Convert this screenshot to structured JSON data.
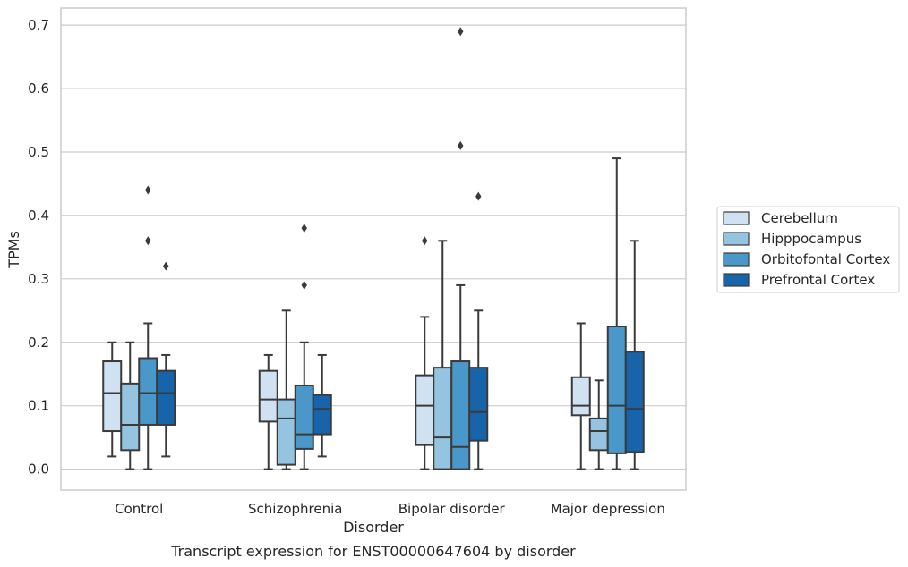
{
  "chart_data": {
    "type": "box",
    "caption": "Transcript expression for ENST00000647604 by disorder",
    "xlabel": "Disorder",
    "ylabel": "TPMs",
    "ylim": [
      -0.033,
      0.727
    ],
    "yticks": [
      0.0,
      0.1,
      0.2,
      0.3,
      0.4,
      0.5,
      0.6,
      0.7
    ],
    "ytick_labels": [
      "0.0",
      "0.1",
      "0.2",
      "0.3",
      "0.4",
      "0.5",
      "0.6",
      "0.7"
    ],
    "grid": true,
    "legend_placement": "center-right outside",
    "categories": [
      "Control",
      "Schizophrenia",
      "Bipolar disorder",
      "Major depression"
    ],
    "series": [
      {
        "name": "Cerebellum",
        "color": "#d0e1f2",
        "boxes": [
          {
            "whislo": 0.02,
            "q1": 0.06,
            "med": 0.12,
            "q3": 0.17,
            "whishi": 0.2,
            "fliers": []
          },
          {
            "whislo": 0.0,
            "q1": 0.075,
            "med": 0.11,
            "q3": 0.155,
            "whishi": 0.18,
            "fliers": []
          },
          {
            "whislo": 0.0,
            "q1": 0.038,
            "med": 0.1,
            "q3": 0.148,
            "whishi": 0.24,
            "fliers": [
              0.36
            ]
          },
          {
            "whislo": 0.0,
            "q1": 0.085,
            "med": 0.1,
            "q3": 0.145,
            "whishi": 0.23,
            "fliers": []
          }
        ]
      },
      {
        "name": "Hipppocampus",
        "color": "#94c4df",
        "boxes": [
          {
            "whislo": 0.0,
            "q1": 0.03,
            "med": 0.07,
            "q3": 0.135,
            "whishi": 0.2,
            "fliers": []
          },
          {
            "whislo": 0.0,
            "q1": 0.007,
            "med": 0.08,
            "q3": 0.11,
            "whishi": 0.25,
            "fliers": []
          },
          {
            "whislo": 0.0,
            "q1": 0.0,
            "med": 0.05,
            "q3": 0.16,
            "whishi": 0.36,
            "fliers": []
          },
          {
            "whislo": 0.0,
            "q1": 0.03,
            "med": 0.06,
            "q3": 0.08,
            "whishi": 0.14,
            "fliers": []
          }
        ]
      },
      {
        "name": "Orbitofontal Cortex",
        "color": "#4a98c9",
        "boxes": [
          {
            "whislo": 0.0,
            "q1": 0.07,
            "med": 0.12,
            "q3": 0.175,
            "whishi": 0.23,
            "fliers": [
              0.44,
              0.36
            ]
          },
          {
            "whislo": 0.0,
            "q1": 0.032,
            "med": 0.055,
            "q3": 0.132,
            "whishi": 0.2,
            "fliers": [
              0.38,
              0.29
            ]
          },
          {
            "whislo": 0.0,
            "q1": 0.0,
            "med": 0.035,
            "q3": 0.17,
            "whishi": 0.29,
            "fliers": [
              0.69,
              0.51
            ]
          },
          {
            "whislo": 0.0,
            "q1": 0.025,
            "med": 0.1,
            "q3": 0.225,
            "whishi": 0.49,
            "fliers": []
          }
        ]
      },
      {
        "name": "Prefrontal Cortex",
        "color": "#1764ab",
        "boxes": [
          {
            "whislo": 0.02,
            "q1": 0.07,
            "med": 0.12,
            "q3": 0.155,
            "whishi": 0.18,
            "fliers": [
              0.32
            ]
          },
          {
            "whislo": 0.02,
            "q1": 0.055,
            "med": 0.095,
            "q3": 0.117,
            "whishi": 0.18,
            "fliers": []
          },
          {
            "whislo": 0.0,
            "q1": 0.045,
            "med": 0.09,
            "q3": 0.16,
            "whishi": 0.25,
            "fliers": [
              0.43
            ]
          },
          {
            "whislo": 0.0,
            "q1": 0.027,
            "med": 0.095,
            "q3": 0.185,
            "whishi": 0.36,
            "fliers": []
          }
        ]
      }
    ]
  }
}
